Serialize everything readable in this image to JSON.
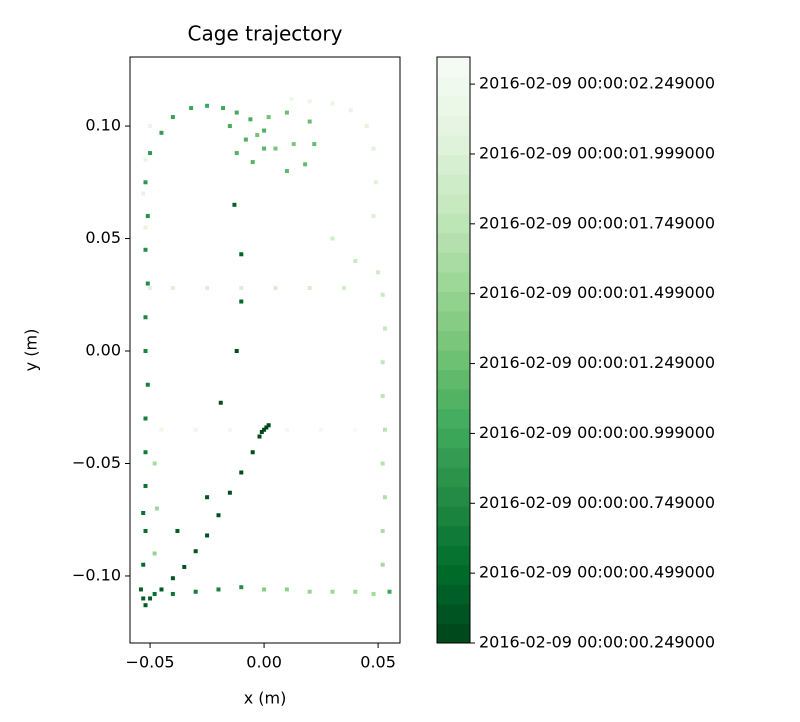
{
  "chart_data": {
    "type": "scatter",
    "title": "Cage trajectory",
    "xlabel": "x (m)",
    "ylabel": "y (m)",
    "x": [
      0.001,
      0.0,
      -0.001,
      0.002,
      -0.002,
      -0.005,
      -0.01,
      -0.015,
      -0.02,
      -0.025,
      -0.03,
      -0.035,
      -0.04,
      -0.045,
      -0.05,
      -0.052,
      -0.053,
      -0.054,
      -0.012,
      -0.019,
      -0.025,
      -0.038,
      -0.013,
      -0.01,
      -0.01,
      -0.053,
      -0.052,
      -0.053,
      -0.052,
      -0.052,
      -0.052,
      -0.051,
      -0.052,
      -0.052,
      -0.051,
      -0.052,
      -0.051,
      -0.052,
      -0.05,
      -0.045,
      -0.04,
      -0.032,
      -0.025,
      -0.018,
      -0.012,
      -0.006,
      0.0,
      -0.008,
      -0.012,
      -0.005,
      0.0,
      -0.015,
      0.01,
      0.018,
      0.022,
      0.02,
      0.01,
      0.002,
      -0.003,
      0.005,
      0.013,
      -0.048,
      -0.04,
      -0.03,
      -0.02,
      -0.01,
      0.0,
      0.01,
      0.02,
      0.03,
      0.04,
      0.048,
      0.055,
      -0.048,
      -0.047,
      -0.048,
      0.052,
      0.052,
      0.053,
      0.052,
      0.053,
      0.052,
      0.052,
      0.053,
      0.052,
      0.05,
      0.048,
      0.049,
      0.048,
      0.045,
      0.038,
      0.03,
      0.02,
      0.012,
      0.04,
      0.03,
      0.035,
      0.02,
      0.005,
      -0.01,
      -0.025,
      -0.04,
      -0.05,
      -0.045,
      -0.03,
      -0.015,
      0.01,
      0.025,
      0.04,
      -0.052,
      -0.053,
      -0.052,
      -0.05
    ],
    "y": [
      -0.034,
      -0.035,
      -0.036,
      -0.033,
      -0.038,
      -0.045,
      -0.054,
      -0.063,
      -0.073,
      -0.082,
      -0.089,
      -0.096,
      -0.101,
      -0.106,
      -0.11,
      -0.113,
      -0.11,
      -0.106,
      0.0,
      -0.023,
      -0.065,
      -0.08,
      0.065,
      0.043,
      0.022,
      -0.095,
      -0.08,
      -0.072,
      -0.06,
      -0.045,
      -0.03,
      -0.015,
      0.0,
      0.015,
      0.03,
      0.045,
      0.06,
      0.075,
      0.088,
      0.097,
      0.104,
      0.108,
      0.109,
      0.108,
      0.106,
      0.103,
      0.098,
      0.094,
      0.088,
      0.084,
      0.09,
      0.1,
      0.08,
      0.083,
      0.092,
      0.102,
      0.106,
      0.104,
      0.096,
      0.09,
      0.092,
      -0.108,
      -0.108,
      -0.107,
      -0.106,
      -0.105,
      -0.106,
      -0.106,
      -0.107,
      -0.107,
      -0.107,
      -0.108,
      -0.107,
      -0.09,
      -0.07,
      -0.05,
      -0.095,
      -0.08,
      -0.065,
      -0.05,
      -0.035,
      -0.02,
      -0.005,
      0.01,
      0.025,
      0.035,
      0.06,
      0.075,
      0.09,
      0.1,
      0.107,
      0.11,
      0.111,
      0.112,
      0.04,
      0.05,
      0.028,
      0.028,
      0.028,
      0.028,
      0.028,
      0.028,
      0.028,
      -0.035,
      -0.035,
      -0.035,
      -0.035,
      -0.035,
      -0.035,
      0.055,
      0.07,
      0.085,
      0.1
    ],
    "c": [
      0.25,
      0.26,
      0.27,
      0.28,
      0.29,
      0.3,
      0.31,
      0.32,
      0.33,
      0.34,
      0.35,
      0.36,
      0.37,
      0.38,
      0.39,
      0.4,
      0.41,
      0.42,
      0.3,
      0.33,
      0.36,
      0.4,
      0.45,
      0.46,
      0.47,
      0.5,
      0.53,
      0.56,
      0.59,
      0.62,
      0.65,
      0.68,
      0.71,
      0.74,
      0.77,
      0.8,
      0.83,
      0.86,
      0.89,
      0.92,
      0.95,
      0.98,
      1.0,
      1.02,
      1.04,
      1.06,
      1.08,
      1.1,
      1.12,
      1.14,
      1.16,
      1.05,
      1.18,
      1.2,
      1.22,
      1.24,
      1.26,
      1.28,
      1.3,
      1.32,
      1.34,
      0.55,
      0.6,
      0.65,
      0.7,
      0.8,
      1.4,
      1.45,
      1.5,
      1.52,
      1.55,
      1.58,
      1.0,
      1.5,
      1.55,
      1.6,
      1.6,
      1.63,
      1.66,
      1.69,
      1.72,
      1.75,
      1.78,
      1.81,
      1.84,
      1.87,
      1.99,
      2.02,
      2.05,
      2.08,
      2.11,
      2.14,
      2.17,
      2.2,
      1.85,
      1.88,
      1.92,
      1.94,
      1.96,
      1.98,
      2.0,
      2.02,
      2.04,
      2.2,
      2.22,
      2.24,
      2.26,
      2.28,
      2.3,
      2.1,
      2.12,
      2.14,
      2.16
    ],
    "xlim": [
      -0.0588,
      0.0596
    ],
    "ylim": [
      -0.1298,
      0.1307
    ],
    "xticks": [
      {
        "value": -0.05,
        "label": "−0.05"
      },
      {
        "value": 0,
        "label": "0.00"
      },
      {
        "value": 0.05,
        "label": "0.05"
      }
    ],
    "yticks": [
      {
        "value": -0.1,
        "label": "−0.10"
      },
      {
        "value": -0.05,
        "label": "−0.05"
      },
      {
        "value": 0,
        "label": "0.00"
      },
      {
        "value": 0.05,
        "label": "0.05"
      },
      {
        "value": 0.1,
        "label": "0.10"
      }
    ],
    "colorbar": {
      "lim": [
        0.249,
        2.346
      ],
      "ticks": [
        {
          "value": 0.249,
          "label": "2016-02-09 00:00:00.249000"
        },
        {
          "value": 0.499,
          "label": "2016-02-09 00:00:00.499000"
        },
        {
          "value": 0.749,
          "label": "2016-02-09 00:00:00.749000"
        },
        {
          "value": 0.999,
          "label": "2016-02-09 00:00:00.999000"
        },
        {
          "value": 1.249,
          "label": "2016-02-09 00:00:01.249000"
        },
        {
          "value": 1.499,
          "label": "2016-02-09 00:00:01.499000"
        },
        {
          "value": 1.749,
          "label": "2016-02-09 00:00:01.749000"
        },
        {
          "value": 1.999,
          "label": "2016-02-09 00:00:01.999000"
        },
        {
          "value": 2.249,
          "label": "2016-02-09 00:00:02.249000"
        }
      ],
      "colormap": [
        "#00441b",
        "#006d2c",
        "#238b45",
        "#41ab5d",
        "#74c476",
        "#a1d99b",
        "#c7e9c0",
        "#e5f5e0",
        "#f7fcf5"
      ]
    }
  }
}
